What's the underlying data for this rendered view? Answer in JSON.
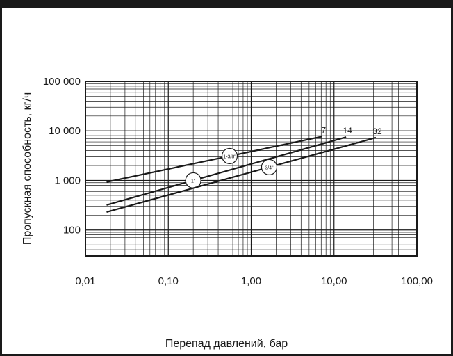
{
  "page": {
    "header_text": ""
  },
  "colors": {
    "line": "#1a1a1a",
    "grid": "#1a1a1a",
    "frame": "#1a1a1a",
    "background": "#ffffff"
  },
  "chart_data": {
    "type": "line",
    "title": "",
    "xlabel": "Перепад давлений, бар",
    "ylabel": "Пропускная способность, кг/ч",
    "xscale": "log",
    "yscale": "log",
    "xlim": [
      0.01,
      100
    ],
    "ylim": [
      30,
      100000
    ],
    "grid": true,
    "x_ticks": [
      {
        "value": 0.01,
        "label": "0,01"
      },
      {
        "value": 0.1,
        "label": "0,10"
      },
      {
        "value": 1,
        "label": "1,00"
      },
      {
        "value": 10,
        "label": "10,00"
      },
      {
        "value": 100,
        "label": "100,00"
      }
    ],
    "y_ticks": [
      {
        "value": 100,
        "label": "100"
      },
      {
        "value": 1000,
        "label": "1 000"
      },
      {
        "value": 10000,
        "label": "10 000"
      },
      {
        "value": 100000,
        "label": "100 000"
      }
    ],
    "series": [
      {
        "name": "7",
        "x": [
          0.018,
          7.2
        ],
        "y": [
          930,
          7700
        ],
        "marker": "1-3/8\"",
        "marker_x": 0.55
      },
      {
        "name": "14",
        "x": [
          0.018,
          14
        ],
        "y": [
          320,
          7500
        ],
        "marker": "1\"",
        "marker_x": 0.2
      },
      {
        "name": "32",
        "x": [
          0.018,
          32
        ],
        "y": [
          230,
          7300
        ],
        "marker": "3/4\"",
        "marker_x": 1.65
      }
    ]
  }
}
